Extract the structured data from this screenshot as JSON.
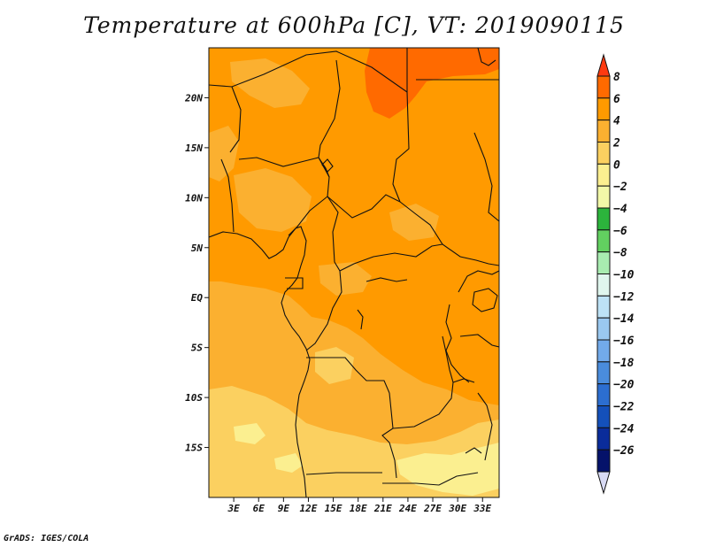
{
  "title": "Temperature at 600hPa [C], VT: 2019090115",
  "credit": "GrADS: IGES/COLA",
  "map": {
    "lon_range": [
      0,
      35
    ],
    "lat_range": [
      -20,
      25
    ],
    "lat_ticks": [
      {
        "value": 20,
        "label": "20N"
      },
      {
        "value": 15,
        "label": "15N"
      },
      {
        "value": 10,
        "label": "10N"
      },
      {
        "value": 5,
        "label": "5N"
      },
      {
        "value": 0,
        "label": "EQ"
      },
      {
        "value": -5,
        "label": "5S"
      },
      {
        "value": -10,
        "label": "10S"
      },
      {
        "value": -15,
        "label": "15S"
      }
    ],
    "lon_ticks": [
      {
        "value": 3,
        "label": "3E"
      },
      {
        "value": 6,
        "label": "6E"
      },
      {
        "value": 9,
        "label": "9E"
      },
      {
        "value": 12,
        "label": "12E"
      },
      {
        "value": 15,
        "label": "15E"
      },
      {
        "value": 18,
        "label": "18E"
      },
      {
        "value": 21,
        "label": "21E"
      },
      {
        "value": 24,
        "label": "24E"
      },
      {
        "value": 27,
        "label": "27E"
      },
      {
        "value": 30,
        "label": "30E"
      },
      {
        "value": 33,
        "label": "33E"
      }
    ]
  },
  "colorbar": {
    "levels": [
      8,
      6,
      4,
      2,
      0,
      -2,
      -4,
      -6,
      -8,
      -10,
      -12,
      -14,
      -16,
      -18,
      -20,
      -22,
      -24,
      -26
    ],
    "labels": [
      "8",
      "6",
      "4",
      "2",
      "0",
      "−2",
      "−4",
      "−6",
      "−8",
      "−10",
      "−12",
      "−14",
      "−16",
      "−18",
      "−20",
      "−22",
      "−24",
      "−26"
    ],
    "colors_top_to_bottom": [
      "#ff3a10",
      "#ff6a00",
      "#ff9a00",
      "#fbb030",
      "#fbd060",
      "#fbef90",
      "#f2f8a8",
      "#2cb43c",
      "#62d060",
      "#a8ecb0",
      "#e0f6ee",
      "#bde2f6",
      "#9ac8f0",
      "#72aaea",
      "#4a8cdc",
      "#2c6ed0",
      "#1450ba",
      "#0a2c9a",
      "#05126a",
      "#d8daf4"
    ]
  },
  "fill_colors": {
    "ge6": "#ff6a00",
    "4to6": "#ff9a00",
    "2to4": "#fbb030",
    "0to2": "#fbd060",
    "m2to0": "#fbef90",
    "border": "#111111"
  }
}
